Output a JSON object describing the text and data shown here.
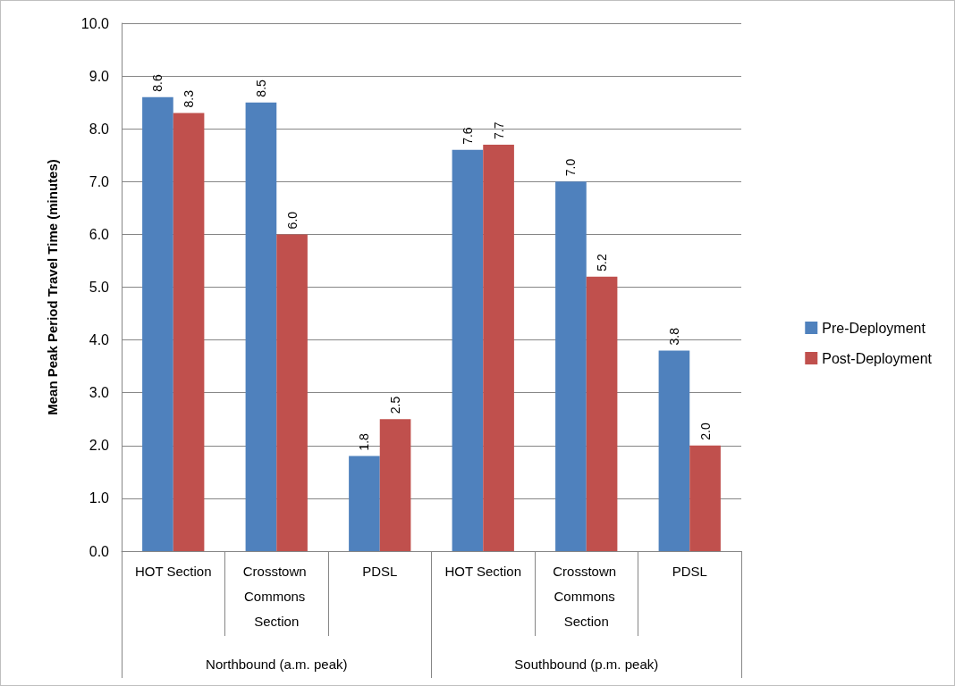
{
  "chart_data": {
    "type": "bar",
    "ylabel": "Mean Peak Period Travel Time (minutes)",
    "categories": [
      "HOT Section",
      "Crosstown Commons Section",
      "PDSL",
      "HOT Section",
      "Crosstown Commons Section",
      "PDSL"
    ],
    "series": [
      {
        "name": "Pre-Deployment",
        "color": "#4f81bd",
        "values": [
          8.6,
          8.5,
          1.8,
          7.6,
          7.0,
          3.8
        ],
        "value_labels": [
          "8.6",
          "8.5",
          "1.8",
          "7.6",
          "7.0",
          "3.8"
        ]
      },
      {
        "name": "Post-Deployment",
        "color": "#c0504d",
        "values": [
          8.3,
          6.0,
          2.5,
          7.7,
          5.2,
          2.0
        ],
        "value_labels": [
          "8.3",
          "6.0",
          "2.5",
          "7.7",
          "5.2",
          "2.0"
        ]
      }
    ],
    "annotations": [
      "Northbound (a.m. peak)",
      "Southbound (p.m. peak)"
    ],
    "ylim": [
      0,
      10
    ],
    "yticks": [
      {
        "value": 0,
        "label": "0.0"
      },
      {
        "value": 1,
        "label": "1.0"
      },
      {
        "value": 2,
        "label": "2.0"
      },
      {
        "value": 3,
        "label": "3.0"
      },
      {
        "value": 4,
        "label": "4.0"
      },
      {
        "value": 5,
        "label": "5.0"
      },
      {
        "value": 6,
        "label": "6.0"
      },
      {
        "value": 7,
        "label": "7.0"
      },
      {
        "value": 8,
        "label": "8.0"
      },
      {
        "value": 9,
        "label": "9.0"
      },
      {
        "value": 10,
        "label": "10.0"
      }
    ],
    "grid": "y",
    "legend": "right"
  }
}
